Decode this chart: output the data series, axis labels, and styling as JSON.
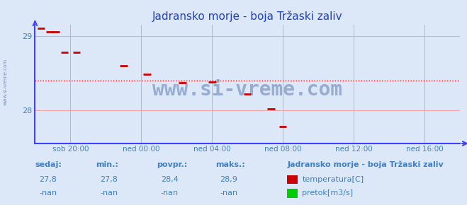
{
  "title": "Jadransko morje - boja Tržaski zaliv",
  "title_color": "#2040c0",
  "bg_color": "#dce8f8",
  "plot_bg_color": "#dce8f8",
  "ylim": [
    27.55,
    29.15
  ],
  "yticks": [
    28.0,
    29.0
  ],
  "xlim": [
    0,
    288
  ],
  "xtick_positions": [
    24,
    72,
    120,
    168,
    216,
    264
  ],
  "xtick_labels": [
    "sob 20:00",
    "ned 00:00",
    "ned 04:00",
    "ned 08:00",
    "ned 12:00",
    "ned 16:00"
  ],
  "grid_color": "#f0a0a0",
  "avg_line_y": 28.4,
  "avg_line_color": "#ff0000",
  "axis_color": "#4040ff",
  "temp_color": "#cc0000",
  "temp_data": [
    [
      4,
      29.1
    ],
    [
      10,
      29.05
    ],
    [
      14,
      29.05
    ],
    [
      20,
      28.78
    ],
    [
      28,
      28.78
    ],
    [
      60,
      28.6
    ],
    [
      76,
      28.48
    ],
    [
      100,
      28.37
    ],
    [
      120,
      28.38
    ],
    [
      144,
      28.22
    ],
    [
      160,
      28.02
    ],
    [
      168,
      27.78
    ]
  ],
  "stat_label_color": "#4080c0",
  "stat_headers": [
    "sedaj:",
    "min.:",
    "povpr.:",
    "maks.:"
  ],
  "stat_values_temp": [
    "27,8",
    "27,8",
    "28,4",
    "28,9"
  ],
  "stat_values_flow": [
    "-nan",
    "-nan",
    "-nan",
    "-nan"
  ],
  "legend_title": "Jadransko morje - boja Tržaski zaliv",
  "legend_temp": "temperatura[C]",
  "legend_flow": "pretok[m3/s]",
  "temp_legend_color": "#cc0000",
  "flow_legend_color": "#00cc00",
  "watermark": "www.si-vreme.com",
  "watermark_color": "#1a3a8a",
  "side_label": "www.si-vreme.com",
  "side_label_color": "#4060a0"
}
